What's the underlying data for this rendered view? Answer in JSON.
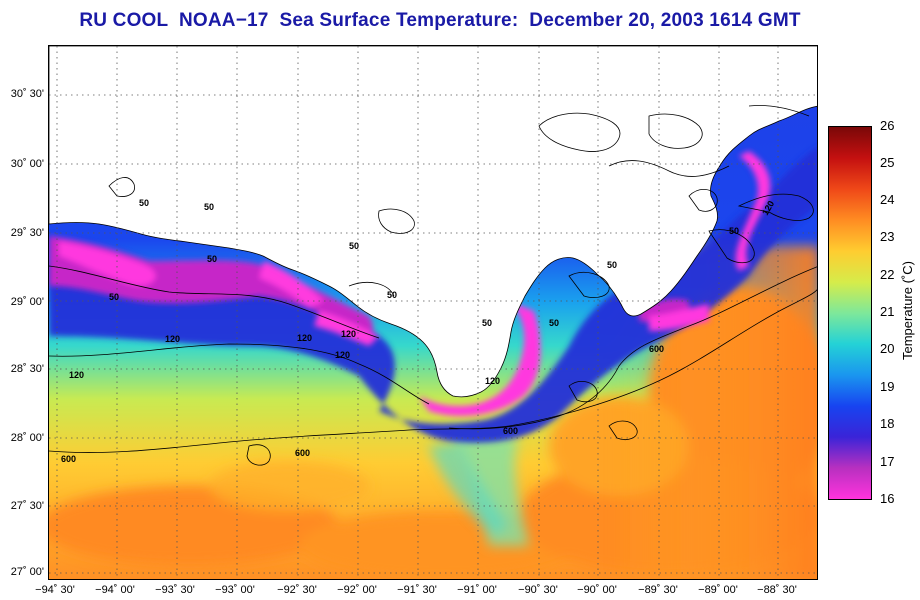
{
  "title": "RU COOL  NOAA−17  Sea Surface Temperature:  December 20, 2003 1614 GMT",
  "map": {
    "lat_labels": [
      "30˚ 30'",
      "30˚ 00'",
      "29˚ 30'",
      "29˚ 00'",
      "28˚ 30'",
      "28˚ 00'",
      "27˚ 30'",
      "27˚ 00'"
    ],
    "lon_labels": [
      "−94˚ 30'",
      "−94˚ 00'",
      "−93˚ 30'",
      "−93˚ 00'",
      "−92˚ 30'",
      "−92˚ 00'",
      "−91˚ 30'",
      "−91˚ 00'",
      "−90˚ 30'",
      "−90˚ 00'",
      "−89˚ 30'",
      "−89˚ 00'",
      "−88˚ 30'"
    ],
    "contour_labels": [
      "50",
      "50",
      "50",
      "50",
      "50",
      "50",
      "50",
      "50",
      "120",
      "120",
      "120",
      "120",
      "120",
      "120",
      "600",
      "600",
      "600",
      "600",
      "50",
      "120",
      "50"
    ]
  },
  "colorbar": {
    "label": "Temperature (˚C)",
    "ticks": [
      "26",
      "25",
      "24",
      "23",
      "22",
      "21",
      "20",
      "19",
      "18",
      "17",
      "16"
    ],
    "min": 16,
    "max": 26,
    "colors": [
      "#ff33dd",
      "#b830c0",
      "#3a24d8",
      "#1744f0",
      "#1a96ef",
      "#24d2d6",
      "#7ee89a",
      "#d6ec4a",
      "#ffcc30",
      "#ff8c22",
      "#ef4818",
      "#c41010",
      "#7a0808"
    ]
  }
}
